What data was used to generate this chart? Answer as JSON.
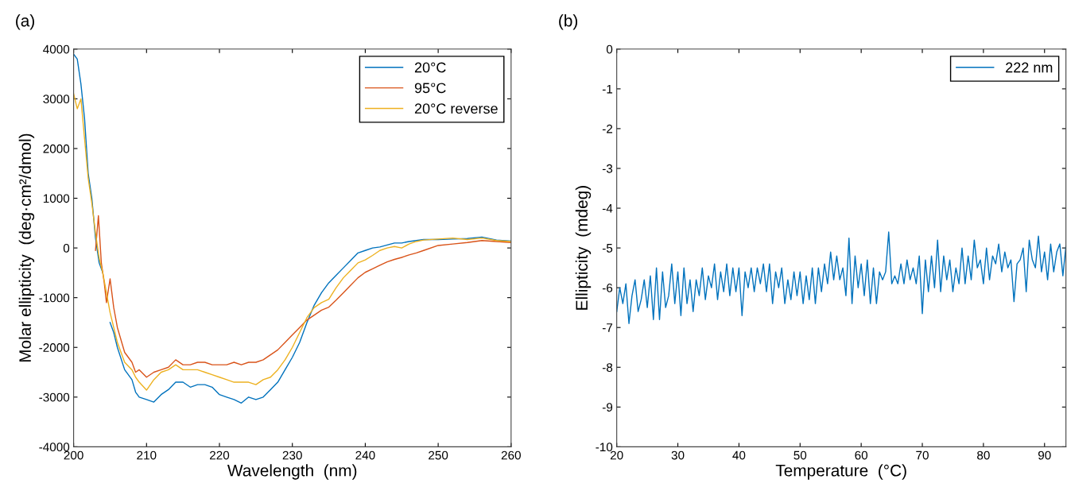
{
  "chart_data": [
    {
      "type": "line",
      "title": "(a)",
      "xlabel": "Wavelength  (nm)",
      "ylabel": "Molar ellipticity  (deg·cm²/dmol)",
      "xlim": [
        200,
        260
      ],
      "xticks": [
        200,
        210,
        220,
        230,
        240,
        250,
        260
      ],
      "ylim": [
        -4000,
        4000
      ],
      "yticks": [
        -4000,
        -3000,
        -2000,
        -1000,
        0,
        1000,
        2000,
        3000,
        4000
      ],
      "grid": false,
      "legend": "top right",
      "line_style": "solid",
      "marker": "none",
      "series": [
        {
          "name": "20°C",
          "color": "#0072bd",
          "x": [
            200,
            200.5,
            201,
            201.5,
            202,
            202.5,
            203,
            203.5,
            204,
            204.5,
            205,
            205.5,
            206,
            207,
            208,
            208.5,
            209,
            210,
            211,
            212,
            213,
            214,
            215,
            216,
            217,
            218,
            219,
            220,
            221,
            222,
            223,
            224,
            225,
            226,
            227,
            228,
            229,
            230,
            231,
            232,
            233,
            234,
            235,
            236,
            237,
            238,
            239,
            240,
            241,
            242,
            243,
            244,
            245,
            246,
            247,
            248,
            250,
            252,
            254,
            256,
            258,
            260
          ],
          "values": [
            3900,
            3800,
            3300,
            2600,
            1500,
            1000,
            200,
            -300,
            -500,
            null,
            -1500,
            -1700,
            -2000,
            -2450,
            -2650,
            -2900,
            -3000,
            -3050,
            -3100,
            -2950,
            -2850,
            -2700,
            -2700,
            -2800,
            -2750,
            -2750,
            -2800,
            -2950,
            -3000,
            -3050,
            -3120,
            -3000,
            -3050,
            -3000,
            -2850,
            -2700,
            -2450,
            -2200,
            -1900,
            -1500,
            -1150,
            -900,
            -700,
            -550,
            -400,
            -250,
            -100,
            -50,
            0,
            20,
            60,
            100,
            100,
            130,
            150,
            170,
            170,
            180,
            190,
            220,
            160,
            140
          ]
        },
        {
          "name": "95°C",
          "color": "#d95319",
          "x": [
            203,
            203.4,
            203.8,
            204.2,
            204.5,
            205,
            205.5,
            206,
            207,
            208,
            208.5,
            209,
            210,
            211,
            212,
            213,
            214,
            215,
            216,
            217,
            218,
            219,
            220,
            221,
            222,
            223,
            224,
            225,
            226,
            227,
            228,
            229,
            230,
            231,
            232,
            233,
            234,
            235,
            236,
            237,
            238,
            239,
            240,
            241,
            242,
            243,
            244,
            245,
            246,
            247,
            248,
            250,
            252,
            254,
            256,
            258,
            260
          ],
          "values": [
            -50,
            650,
            -300,
            -700,
            -1100,
            -620,
            -1200,
            -1600,
            -2100,
            -2300,
            -2500,
            -2450,
            -2600,
            -2500,
            -2450,
            -2400,
            -2250,
            -2350,
            -2350,
            -2300,
            -2300,
            -2350,
            -2350,
            -2350,
            -2300,
            -2350,
            -2300,
            -2300,
            -2250,
            -2150,
            -2050,
            -1900,
            -1750,
            -1600,
            -1450,
            -1350,
            -1250,
            -1190,
            -1050,
            -900,
            -750,
            -600,
            -490,
            -420,
            -350,
            -280,
            -230,
            -190,
            -140,
            -100,
            -50,
            50,
            80,
            110,
            150,
            130,
            110
          ]
        },
        {
          "name": "20°C reverse",
          "color": "#edb120",
          "x": [
            200,
            200.5,
            201,
            201.5,
            202,
            202.5,
            203,
            203.5,
            204,
            204.5,
            205,
            205.5,
            206,
            207,
            208,
            208.5,
            209,
            210,
            211,
            212,
            213,
            214,
            215,
            216,
            217,
            218,
            219,
            220,
            221,
            222,
            223,
            224,
            225,
            226,
            227,
            228,
            229,
            230,
            231,
            232,
            233,
            234,
            235,
            236,
            237,
            238,
            239,
            240,
            241,
            242,
            243,
            244,
            245,
            246,
            247,
            248,
            250,
            252,
            254,
            256,
            258,
            260
          ],
          "values": [
            3100,
            2800,
            3000,
            2200,
            1400,
            900,
            300,
            -200,
            -500,
            -900,
            -1300,
            -1600,
            -1900,
            -2300,
            -2450,
            -2600,
            -2700,
            -2860,
            -2650,
            -2500,
            -2450,
            -2350,
            -2450,
            -2450,
            -2450,
            -2500,
            -2550,
            -2600,
            -2650,
            -2700,
            -2700,
            -2700,
            -2750,
            -2650,
            -2600,
            -2450,
            -2250,
            -2000,
            -1700,
            -1400,
            -1200,
            -1100,
            -1030,
            -800,
            -600,
            -450,
            -300,
            -240,
            -150,
            -50,
            0,
            30,
            0,
            80,
            130,
            160,
            180,
            200,
            170,
            200,
            150,
            130
          ]
        }
      ]
    },
    {
      "type": "line",
      "title": "(b)",
      "xlabel": "Temperature  (°C)",
      "ylabel": "Ellipticity  (mdeg)",
      "xlim": [
        20,
        93.5
      ],
      "xticks": [
        20,
        30,
        40,
        50,
        60,
        70,
        80,
        90
      ],
      "ylim": [
        -10,
        0
      ],
      "yticks": [
        -10,
        -9,
        -8,
        -7,
        -6,
        -5,
        -4,
        -3,
        -2,
        -1,
        0
      ],
      "grid": false,
      "legend": "top right",
      "line_style": "solid",
      "marker": "none",
      "series": [
        {
          "name": "222 nm",
          "color": "#0072bd",
          "x": [
            20,
            20.5,
            21,
            21.5,
            22,
            22.5,
            23,
            23.5,
            24,
            24.5,
            25,
            25.5,
            26,
            26.5,
            27,
            27.5,
            28,
            28.5,
            29,
            29.5,
            30,
            30.5,
            31,
            31.5,
            32,
            32.5,
            33,
            33.5,
            34,
            34.5,
            35,
            35.5,
            36,
            36.5,
            37,
            37.5,
            38,
            38.5,
            39,
            39.5,
            40,
            40.5,
            41,
            41.5,
            42,
            42.5,
            43,
            43.5,
            44,
            44.5,
            45,
            45.5,
            46,
            46.5,
            47,
            47.5,
            48,
            48.5,
            49,
            49.5,
            50,
            50.5,
            51,
            51.5,
            52,
            52.5,
            53,
            53.5,
            54,
            54.5,
            55,
            55.5,
            56,
            56.5,
            57,
            57.5,
            58,
            58.5,
            59,
            59.5,
            60,
            60.5,
            61,
            61.5,
            62,
            62.5,
            63,
            63.5,
            64,
            64.5,
            65,
            65.5,
            66,
            66.5,
            67,
            67.5,
            68,
            68.5,
            69,
            69.5,
            70,
            70.5,
            71,
            71.5,
            72,
            72.5,
            73,
            73.5,
            74,
            74.5,
            75,
            75.5,
            76,
            76.5,
            77,
            77.5,
            78,
            78.5,
            79,
            79.5,
            80,
            80.5,
            81,
            81.5,
            82,
            82.5,
            83,
            83.5,
            84,
            84.5,
            85,
            85.5,
            86,
            86.5,
            87,
            87.5,
            88,
            88.5,
            89,
            89.5,
            90,
            90.5,
            91,
            91.5,
            92,
            92.5,
            93,
            93.5
          ],
          "values": [
            -6.6,
            -6.0,
            -6.4,
            -5.9,
            -6.9,
            -6.2,
            -5.8,
            -6.6,
            -6.3,
            -5.8,
            -6.5,
            -5.7,
            -6.8,
            -5.5,
            -6.8,
            -5.6,
            -6.5,
            -6.2,
            -5.4,
            -6.4,
            -5.6,
            -6.7,
            -5.5,
            -6.4,
            -5.8,
            -6.6,
            -5.8,
            -6.2,
            -5.5,
            -6.3,
            -5.7,
            -6.0,
            -5.4,
            -6.3,
            -5.6,
            -6.1,
            -5.4,
            -6.2,
            -5.5,
            -6.1,
            -5.5,
            -6.7,
            -5.6,
            -6.0,
            -5.5,
            -6.1,
            -5.5,
            -5.9,
            -5.4,
            -6.1,
            -5.4,
            -6.4,
            -5.6,
            -6.0,
            -5.5,
            -6.4,
            -5.8,
            -6.3,
            -5.6,
            -6.2,
            -5.6,
            -6.4,
            -5.7,
            -6.3,
            -5.5,
            -6.4,
            -5.5,
            -6.1,
            -5.4,
            -5.9,
            -5.1,
            -5.8,
            -5.2,
            -5.8,
            -5.5,
            -6.2,
            -4.75,
            -6.4,
            -5.2,
            -6.0,
            -5.4,
            -6.2,
            -5.3,
            -6.4,
            -5.5,
            -6.4,
            -5.6,
            -5.8,
            -5.6,
            -4.6,
            -5.9,
            -5.7,
            -5.9,
            -5.4,
            -5.9,
            -5.3,
            -5.8,
            -5.5,
            -5.9,
            -5.2,
            -6.65,
            -5.3,
            -6.1,
            -5.2,
            -6.0,
            -4.8,
            -6.1,
            -5.2,
            -5.8,
            -5.3,
            -6.1,
            -5.5,
            -5.9,
            -5.0,
            -5.9,
            -5.2,
            -5.8,
            -4.8,
            -5.5,
            -5.3,
            -5.9,
            -5.0,
            -5.8,
            -5.2,
            -5.4,
            -4.9,
            -5.6,
            -5.1,
            -5.5,
            -5.3,
            -6.35,
            -5.4,
            -5.3,
            -5.0,
            -6.1,
            -4.8,
            -5.3,
            -5.5,
            -4.7,
            -5.6,
            -5.1,
            -5.8,
            -4.9,
            -5.6,
            -5.1,
            -4.9,
            -5.7,
            -4.95
          ]
        }
      ]
    }
  ]
}
